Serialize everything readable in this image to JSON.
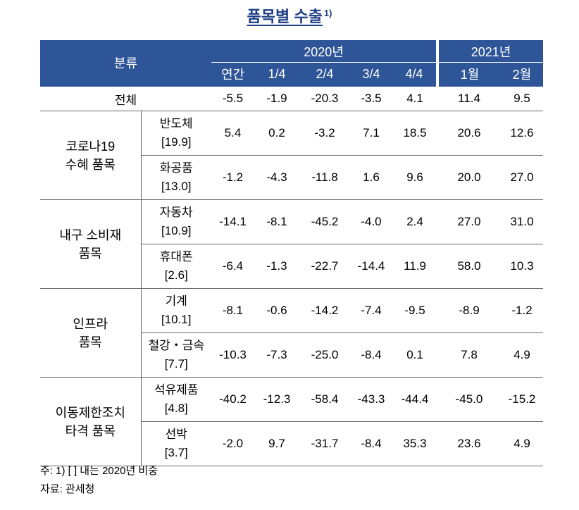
{
  "title": "품목별 수출",
  "title_sup": "1)",
  "header": {
    "category": "분류",
    "year2020": "2020년",
    "year2021": "2021년",
    "cols": [
      "연간",
      "1/4",
      "2/4",
      "3/4",
      "4/4",
      "1월",
      "2월"
    ]
  },
  "total": {
    "label": "전체",
    "values": [
      "-5.5",
      "-1.9",
      "-20.3",
      "-3.5",
      "4.1",
      "11.4",
      "9.5"
    ]
  },
  "groups": [
    {
      "name_line1": "코로나19",
      "name_line2": "수혜 품목",
      "items": [
        {
          "name": "반도체",
          "weight": "[19.9]",
          "values": [
            "5.4",
            "0.2",
            "-3.2",
            "7.1",
            "18.5",
            "20.6",
            "12.6"
          ]
        },
        {
          "name": "화공품",
          "weight": "[13.0]",
          "values": [
            "-1.2",
            "-4.3",
            "-11.8",
            "1.6",
            "9.6",
            "20.0",
            "27.0"
          ]
        }
      ]
    },
    {
      "name_line1": "내구 소비재",
      "name_line2": "품목",
      "items": [
        {
          "name": "자동차",
          "weight": "[10.9]",
          "values": [
            "-14.1",
            "-8.1",
            "-45.2",
            "-4.0",
            "2.4",
            "27.0",
            "31.0"
          ]
        },
        {
          "name": "휴대폰",
          "weight": "[2.6]",
          "values": [
            "-6.4",
            "-1.3",
            "-22.7",
            "-14.4",
            "11.9",
            "58.0",
            "10.3"
          ]
        }
      ]
    },
    {
      "name_line1": "인프라",
      "name_line2": "품목",
      "items": [
        {
          "name": "기계",
          "weight": "[10.1]",
          "values": [
            "-8.1",
            "-0.6",
            "-14.2",
            "-7.4",
            "-9.5",
            "-8.9",
            "-1.2"
          ]
        },
        {
          "name": "철강・금속",
          "weight": "[7.7]",
          "values": [
            "-10.3",
            "-7.3",
            "-25.0",
            "-8.4",
            "0.1",
            "7.8",
            "4.9"
          ]
        }
      ]
    },
    {
      "name_line1": "이동제한조치",
      "name_line2": "타격 품목",
      "items": [
        {
          "name": "석유제품",
          "weight": "[4.8]",
          "values": [
            "-40.2",
            "-12.3",
            "-58.4",
            "-43.3",
            "-44.4",
            "-45.0",
            "-15.2"
          ]
        },
        {
          "name": "선박",
          "weight": "[3.7]",
          "values": [
            "-2.0",
            "9.7",
            "-31.7",
            "-8.4",
            "35.3",
            "23.6",
            "4.9"
          ]
        }
      ]
    }
  ],
  "notes": {
    "note1": "주: 1) [   ] 내는 2020년 비중",
    "source": "자료: 관세청"
  }
}
